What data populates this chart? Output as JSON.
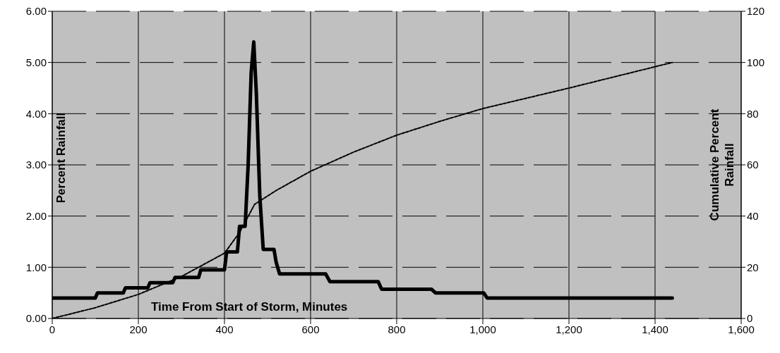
{
  "chart_data": {
    "type": "line",
    "xlabel": "Time From Start of Storm, Minutes",
    "ylabel": "Percent Rainfall",
    "y2label": "Cumulative Percent Rainfall",
    "series": [
      {
        "color": "#000000",
        "line_style": "solid",
        "x": [
          0,
          100,
          105,
          165,
          170,
          222,
          227,
          280,
          285,
          340,
          345,
          400,
          405,
          430,
          435,
          448,
          455,
          462,
          468,
          474,
          482,
          490,
          515,
          520,
          528,
          635,
          645,
          757,
          765,
          881,
          890,
          1002,
          1010,
          1440
        ],
        "values": [
          0.4,
          0.4,
          0.5,
          0.5,
          0.6,
          0.6,
          0.7,
          0.7,
          0.8,
          0.8,
          0.95,
          0.95,
          1.3,
          1.3,
          1.8,
          1.8,
          3.0,
          4.8,
          5.4,
          4.4,
          2.4,
          1.35,
          1.35,
          1.1,
          0.87,
          0.87,
          0.72,
          0.72,
          0.57,
          0.57,
          0.5,
          0.5,
          0.4,
          0.4
        ]
      },
      {
        "axis": "y2",
        "color": "#000000",
        "line_style": "dashed",
        "x": [
          0,
          100,
          200,
          300,
          400,
          435,
          470,
          520,
          600,
          700,
          800,
          900,
          1000,
          1200,
          1440
        ],
        "values": [
          0,
          4.2,
          9.4,
          16.4,
          25.5,
          33.6,
          44.6,
          50,
          57.5,
          65,
          71.6,
          77,
          82,
          90,
          100
        ]
      }
    ],
    "xlim": [
      0,
      1600
    ],
    "xticks": [
      0,
      200,
      400,
      600,
      800,
      {
        "value": 1000,
        "label": "1,000"
      },
      {
        "value": 1200,
        "label": "1,200"
      },
      {
        "value": 1400,
        "label": "1,400"
      },
      {
        "value": 1600,
        "label": "1,600"
      }
    ],
    "ylim": [
      0,
      6
    ],
    "yticks": [
      {
        "value": 0,
        "label": "0.00"
      },
      {
        "value": 1,
        "label": "1.00"
      },
      {
        "value": 2,
        "label": "2.00"
      },
      {
        "value": 3,
        "label": "3.00"
      },
      {
        "value": 4,
        "label": "4.00"
      },
      {
        "value": 5,
        "label": "5.00"
      },
      {
        "value": 6,
        "label": "6.00"
      }
    ],
    "y2lim": [
      0,
      120
    ],
    "y2ticks": [
      0,
      20,
      40,
      60,
      80,
      100,
      120
    ],
    "grid": true,
    "marker": "none"
  }
}
